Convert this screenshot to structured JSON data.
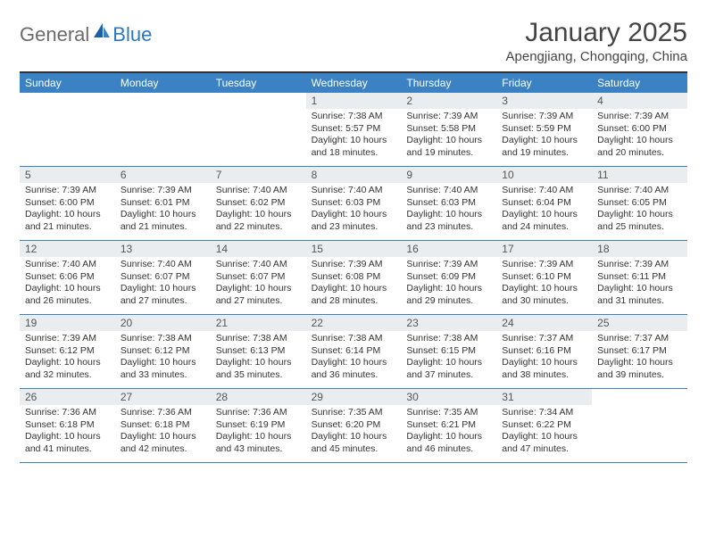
{
  "logo": {
    "general": "General",
    "blue": "Blue"
  },
  "title": "January 2025",
  "subtitle": "Apengjiang, Chongqing, China",
  "colors": {
    "header_bg": "#3b82c4",
    "header_text": "#ffffff",
    "daynum_bg": "#e9edf0",
    "border": "#3b82c4",
    "title_color": "#444444",
    "logo_gray": "#6b6b6b",
    "logo_blue": "#2a78c0"
  },
  "dayNames": [
    "Sunday",
    "Monday",
    "Tuesday",
    "Wednesday",
    "Thursday",
    "Friday",
    "Saturday"
  ],
  "weeks": [
    [
      {
        "n": "",
        "sr": "",
        "ss": "",
        "dl": ""
      },
      {
        "n": "",
        "sr": "",
        "ss": "",
        "dl": ""
      },
      {
        "n": "",
        "sr": "",
        "ss": "",
        "dl": ""
      },
      {
        "n": "1",
        "sr": "Sunrise: 7:38 AM",
        "ss": "Sunset: 5:57 PM",
        "dl": "Daylight: 10 hours and 18 minutes."
      },
      {
        "n": "2",
        "sr": "Sunrise: 7:39 AM",
        "ss": "Sunset: 5:58 PM",
        "dl": "Daylight: 10 hours and 19 minutes."
      },
      {
        "n": "3",
        "sr": "Sunrise: 7:39 AM",
        "ss": "Sunset: 5:59 PM",
        "dl": "Daylight: 10 hours and 19 minutes."
      },
      {
        "n": "4",
        "sr": "Sunrise: 7:39 AM",
        "ss": "Sunset: 6:00 PM",
        "dl": "Daylight: 10 hours and 20 minutes."
      }
    ],
    [
      {
        "n": "5",
        "sr": "Sunrise: 7:39 AM",
        "ss": "Sunset: 6:00 PM",
        "dl": "Daylight: 10 hours and 21 minutes."
      },
      {
        "n": "6",
        "sr": "Sunrise: 7:39 AM",
        "ss": "Sunset: 6:01 PM",
        "dl": "Daylight: 10 hours and 21 minutes."
      },
      {
        "n": "7",
        "sr": "Sunrise: 7:40 AM",
        "ss": "Sunset: 6:02 PM",
        "dl": "Daylight: 10 hours and 22 minutes."
      },
      {
        "n": "8",
        "sr": "Sunrise: 7:40 AM",
        "ss": "Sunset: 6:03 PM",
        "dl": "Daylight: 10 hours and 23 minutes."
      },
      {
        "n": "9",
        "sr": "Sunrise: 7:40 AM",
        "ss": "Sunset: 6:03 PM",
        "dl": "Daylight: 10 hours and 23 minutes."
      },
      {
        "n": "10",
        "sr": "Sunrise: 7:40 AM",
        "ss": "Sunset: 6:04 PM",
        "dl": "Daylight: 10 hours and 24 minutes."
      },
      {
        "n": "11",
        "sr": "Sunrise: 7:40 AM",
        "ss": "Sunset: 6:05 PM",
        "dl": "Daylight: 10 hours and 25 minutes."
      }
    ],
    [
      {
        "n": "12",
        "sr": "Sunrise: 7:40 AM",
        "ss": "Sunset: 6:06 PM",
        "dl": "Daylight: 10 hours and 26 minutes."
      },
      {
        "n": "13",
        "sr": "Sunrise: 7:40 AM",
        "ss": "Sunset: 6:07 PM",
        "dl": "Daylight: 10 hours and 27 minutes."
      },
      {
        "n": "14",
        "sr": "Sunrise: 7:40 AM",
        "ss": "Sunset: 6:07 PM",
        "dl": "Daylight: 10 hours and 27 minutes."
      },
      {
        "n": "15",
        "sr": "Sunrise: 7:39 AM",
        "ss": "Sunset: 6:08 PM",
        "dl": "Daylight: 10 hours and 28 minutes."
      },
      {
        "n": "16",
        "sr": "Sunrise: 7:39 AM",
        "ss": "Sunset: 6:09 PM",
        "dl": "Daylight: 10 hours and 29 minutes."
      },
      {
        "n": "17",
        "sr": "Sunrise: 7:39 AM",
        "ss": "Sunset: 6:10 PM",
        "dl": "Daylight: 10 hours and 30 minutes."
      },
      {
        "n": "18",
        "sr": "Sunrise: 7:39 AM",
        "ss": "Sunset: 6:11 PM",
        "dl": "Daylight: 10 hours and 31 minutes."
      }
    ],
    [
      {
        "n": "19",
        "sr": "Sunrise: 7:39 AM",
        "ss": "Sunset: 6:12 PM",
        "dl": "Daylight: 10 hours and 32 minutes."
      },
      {
        "n": "20",
        "sr": "Sunrise: 7:38 AM",
        "ss": "Sunset: 6:12 PM",
        "dl": "Daylight: 10 hours and 33 minutes."
      },
      {
        "n": "21",
        "sr": "Sunrise: 7:38 AM",
        "ss": "Sunset: 6:13 PM",
        "dl": "Daylight: 10 hours and 35 minutes."
      },
      {
        "n": "22",
        "sr": "Sunrise: 7:38 AM",
        "ss": "Sunset: 6:14 PM",
        "dl": "Daylight: 10 hours and 36 minutes."
      },
      {
        "n": "23",
        "sr": "Sunrise: 7:38 AM",
        "ss": "Sunset: 6:15 PM",
        "dl": "Daylight: 10 hours and 37 minutes."
      },
      {
        "n": "24",
        "sr": "Sunrise: 7:37 AM",
        "ss": "Sunset: 6:16 PM",
        "dl": "Daylight: 10 hours and 38 minutes."
      },
      {
        "n": "25",
        "sr": "Sunrise: 7:37 AM",
        "ss": "Sunset: 6:17 PM",
        "dl": "Daylight: 10 hours and 39 minutes."
      }
    ],
    [
      {
        "n": "26",
        "sr": "Sunrise: 7:36 AM",
        "ss": "Sunset: 6:18 PM",
        "dl": "Daylight: 10 hours and 41 minutes."
      },
      {
        "n": "27",
        "sr": "Sunrise: 7:36 AM",
        "ss": "Sunset: 6:18 PM",
        "dl": "Daylight: 10 hours and 42 minutes."
      },
      {
        "n": "28",
        "sr": "Sunrise: 7:36 AM",
        "ss": "Sunset: 6:19 PM",
        "dl": "Daylight: 10 hours and 43 minutes."
      },
      {
        "n": "29",
        "sr": "Sunrise: 7:35 AM",
        "ss": "Sunset: 6:20 PM",
        "dl": "Daylight: 10 hours and 45 minutes."
      },
      {
        "n": "30",
        "sr": "Sunrise: 7:35 AM",
        "ss": "Sunset: 6:21 PM",
        "dl": "Daylight: 10 hours and 46 minutes."
      },
      {
        "n": "31",
        "sr": "Sunrise: 7:34 AM",
        "ss": "Sunset: 6:22 PM",
        "dl": "Daylight: 10 hours and 47 minutes."
      },
      {
        "n": "",
        "sr": "",
        "ss": "",
        "dl": ""
      }
    ]
  ]
}
